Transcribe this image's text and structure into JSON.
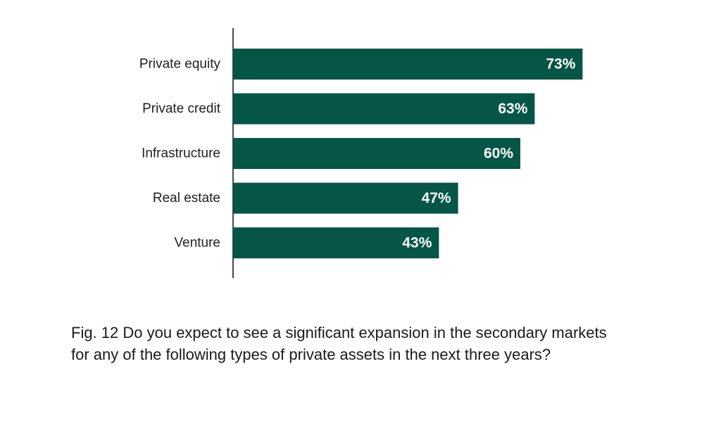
{
  "caption": "Fig. 12 Do you expect to see a significant expansion in the secondary markets for any of the following types of private assets in the next three years?",
  "colors": {
    "bar": "#065647",
    "axis": "#4a4a4a",
    "bar_label": "#ffffff"
  },
  "chart_data": {
    "type": "bar",
    "orientation": "horizontal",
    "title": "",
    "xlabel": "",
    "ylabel": "",
    "categories": [
      "Private equity",
      "Private credit",
      "Infrastructure",
      "Real estate",
      "Venture"
    ],
    "values": [
      73,
      63,
      60,
      47,
      43
    ],
    "value_labels": [
      "73%",
      "63%",
      "60%",
      "47%",
      "43%"
    ],
    "unit": "%",
    "xlim": [
      0,
      100
    ],
    "grid": false,
    "legend": "none"
  }
}
